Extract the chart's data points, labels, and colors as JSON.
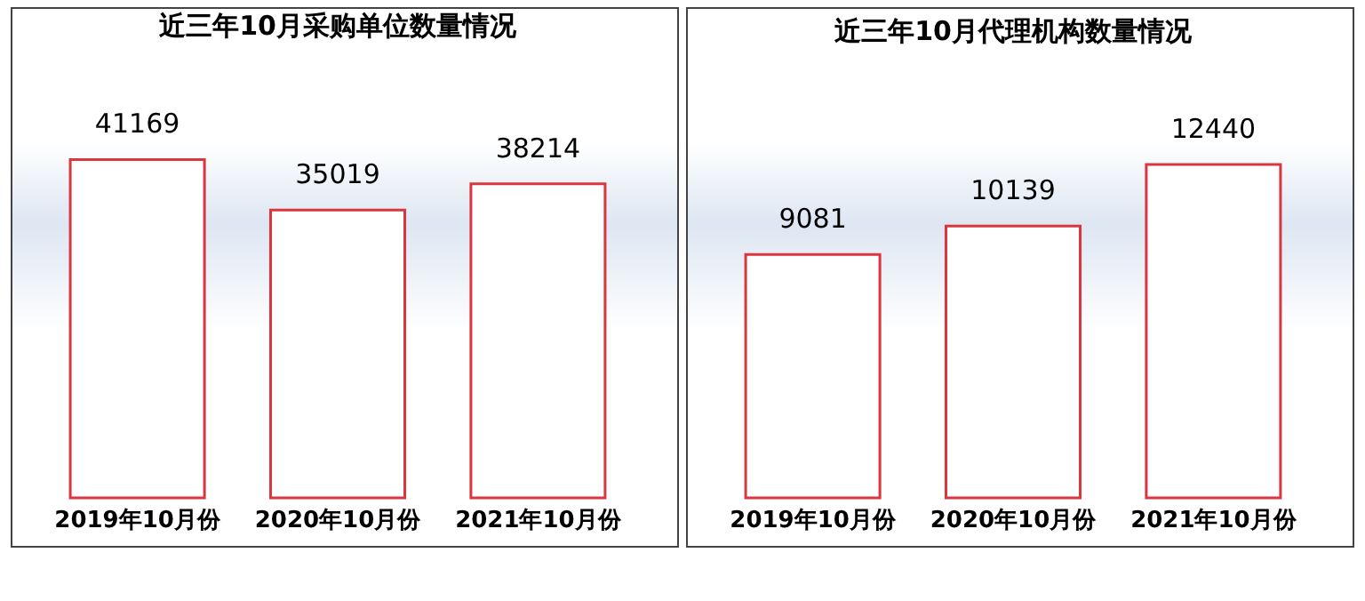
{
  "chart_data": [
    {
      "type": "bar",
      "title": "近三年10月采购单位数量情况",
      "categories": [
        "2019年10月份",
        "2020年10月份",
        "2021年10月份"
      ],
      "values": [
        41169,
        35019,
        38214
      ],
      "color": "#d9363e",
      "data_labels": true
    },
    {
      "type": "bar",
      "title": "近三年10月代理机构数量情况",
      "categories": [
        "2019年10月份",
        "2020年10月份",
        "2021年10月份"
      ],
      "values": [
        9081,
        10139,
        12440
      ],
      "color": "#d9363e",
      "data_labels": true
    }
  ]
}
